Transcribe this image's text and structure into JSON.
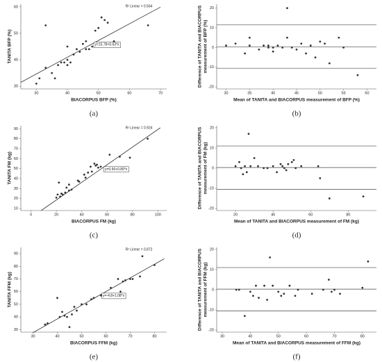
{
  "chart_data": [
    {
      "type": "scatter",
      "panel_label": "(a)",
      "xlabel": "BIACORPUS BFP (%)",
      "ylabel": [
        "TANITA BFP (%)"
      ],
      "annotation": "R² Linear = 0.564",
      "fit_label": "y=15.78+0.63*x",
      "xlim": [
        25,
        72
      ],
      "xticks": [
        30,
        40,
        50,
        60,
        70
      ],
      "ylim": [
        29,
        61
      ],
      "yticks": [
        30,
        40,
        50,
        60
      ],
      "color": "#333333",
      "x": [
        30,
        31,
        33,
        33,
        35,
        36,
        37,
        38,
        39,
        40,
        40,
        41,
        42,
        43,
        44,
        45,
        46,
        46,
        47,
        48,
        49,
        50,
        51,
        53,
        55,
        52,
        66,
        40
      ],
      "y": [
        31,
        33,
        53,
        37,
        35,
        33,
        38,
        39,
        39,
        45,
        40,
        39,
        42,
        44,
        43,
        46,
        47,
        44,
        44,
        45,
        51,
        52,
        56,
        54,
        47,
        55,
        53,
        38
      ],
      "fit_line": {
        "x": [
          25,
          70
        ],
        "y": [
          31.5,
          59.9
        ]
      }
    },
    {
      "type": "scatter",
      "panel_label": "(b)",
      "xlabel": "Mean of TANITA and BIACORPUS measurement of BFP (%)",
      "ylabel": [
        "Difference of TANITA and BIACORPUS",
        "measurement of BFP (%)"
      ],
      "xlim": [
        28,
        62
      ],
      "xticks": [
        30,
        35,
        40,
        45,
        50,
        55,
        60
      ],
      "ylim": [
        -21,
        22
      ],
      "yticks": [
        -20,
        -10,
        0,
        10,
        20
      ],
      "color": "#333333",
      "hlines": [
        11.5,
        0.3,
        -10.5
      ],
      "x": [
        30,
        32,
        34,
        35,
        35,
        37,
        38,
        39,
        39,
        40,
        40,
        41,
        42,
        43,
        43,
        44,
        45,
        46,
        47,
        48,
        49,
        50,
        51,
        52,
        54,
        55,
        58
      ],
      "y": [
        1,
        2,
        -3,
        5,
        1,
        -1,
        1,
        1,
        0,
        -2,
        0,
        1,
        0,
        20,
        5,
        0,
        -1,
        2,
        -3,
        1,
        -5,
        3,
        2,
        -8,
        5,
        0,
        -14
      ]
    },
    {
      "type": "scatter",
      "panel_label": "(c)",
      "xlabel": "BIACORPUS FM (kg)",
      "ylabel": [
        "TANITA FM (kg)"
      ],
      "annotation": "R² Linear = 0.924",
      "fit_label": "y=0.56+0.89*x",
      "xlim": [
        -8,
        107
      ],
      "xticks": [
        0,
        20,
        40,
        60,
        80,
        100
      ],
      "ylim": [
        8,
        93
      ],
      "yticks": [
        10,
        20,
        30,
        40,
        50,
        60,
        70,
        80,
        90
      ],
      "color": "#333333",
      "x": [
        20,
        21,
        22,
        23,
        24,
        25,
        27,
        28,
        30,
        30,
        32,
        37,
        38,
        42,
        43,
        45,
        47,
        48,
        50,
        51,
        52,
        53,
        55,
        62,
        70,
        78,
        92
      ],
      "y": [
        21,
        24,
        36,
        22,
        25,
        24,
        26,
        31,
        34,
        28,
        29,
        38,
        37,
        44,
        41,
        46,
        52,
        47,
        55,
        53,
        54,
        51,
        52,
        64,
        62,
        61,
        80
      ],
      "fit_line": {
        "x": [
          8,
          102
        ],
        "y": [
          8,
          91
        ]
      }
    },
    {
      "type": "scatter",
      "panel_label": "(d)",
      "xlabel": "Mean of TANITA and BIACORPUS measurement of FM (kg)",
      "ylabel": [
        "Difference of TANITA and BIACORPUS",
        "measurement of FM (kg)"
      ],
      "xlim": [
        10,
        95
      ],
      "xticks": [
        20,
        40,
        60,
        80
      ],
      "ylim": [
        -21,
        21
      ],
      "yticks": [
        -20,
        -10,
        0,
        10,
        20
      ],
      "color": "#333333",
      "hlines": [
        11,
        0.3,
        -10.5
      ],
      "x": [
        20,
        22,
        23,
        24,
        25,
        26,
        27,
        28,
        30,
        32,
        35,
        37,
        40,
        42,
        45,
        46,
        47,
        48,
        50,
        51,
        52,
        55,
        64,
        65,
        70,
        88,
        44
      ],
      "y": [
        1,
        3,
        0,
        -3,
        1,
        -2,
        17,
        1,
        5,
        1,
        0,
        0,
        1,
        -2,
        1,
        0,
        -1,
        2,
        3,
        4,
        0,
        1,
        1,
        -5,
        -15,
        -14,
        2
      ]
    },
    {
      "type": "scatter",
      "panel_label": "(e)",
      "xlabel": "BIACORPUS FFM (kg)",
      "ylabel": [
        "TANITA FFM (kg)"
      ],
      "annotation": "R² Linear = 0.872",
      "fit_label": "y=-4.8+1.08*x",
      "xlim": [
        25,
        85
      ],
      "xticks": [
        30,
        40,
        50,
        60,
        70,
        80
      ],
      "ylim": [
        28,
        95
      ],
      "yticks": [
        30,
        40,
        50,
        60,
        70,
        80,
        90
      ],
      "color": "#333333",
      "x": [
        35,
        36,
        40,
        41,
        42,
        43,
        44,
        45,
        46,
        47,
        48,
        50,
        52,
        54,
        55,
        58,
        62,
        65,
        67,
        68,
        70,
        71,
        74,
        75,
        80,
        66
      ],
      "y": [
        34,
        35,
        55,
        40,
        44,
        41,
        40,
        32,
        42,
        48,
        45,
        50,
        50,
        54,
        55,
        57,
        63,
        70,
        68,
        69,
        70,
        70,
        72,
        88,
        81,
        60
      ],
      "fit_line": {
        "x": [
          30,
          84
        ],
        "y": [
          27.6,
          86
        ]
      }
    },
    {
      "type": "scatter",
      "panel_label": "(f)",
      "xlabel": "Mean of TANITA and BIACORPUS measurement of FFM (kg)",
      "ylabel": [
        "Difference of TANITA and BIACORPUS",
        "measurement of FFM (kg)"
      ],
      "xlim": [
        28,
        85
      ],
      "xticks": [
        30,
        40,
        50,
        60,
        70,
        80
      ],
      "ylim": [
        -21,
        21
      ],
      "yticks": [
        -20,
        -10,
        0,
        10,
        20
      ],
      "color": "#333333",
      "hlines": [
        11,
        0.3,
        -10.5
      ],
      "x": [
        35,
        36,
        38,
        40,
        41,
        42,
        43,
        45,
        46,
        47,
        48,
        50,
        51,
        52,
        54,
        56,
        57,
        62,
        68,
        69,
        70,
        72,
        80,
        82,
        66
      ],
      "y": [
        0,
        0,
        -13,
        -1,
        -3,
        2,
        -4,
        2,
        -5,
        16,
        2,
        -1,
        -3,
        -2,
        2,
        -3,
        0,
        -2,
        5,
        -1,
        0,
        -2,
        1,
        14,
        0
      ]
    }
  ]
}
